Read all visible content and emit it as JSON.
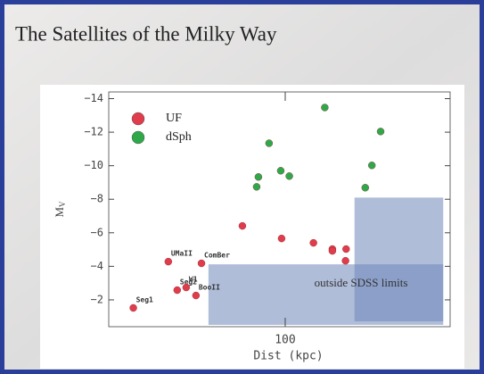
{
  "slide_title": "The Satellites of the Milky Way",
  "chart_data": {
    "type": "scatter",
    "xlabel": "Dist (kpc)",
    "ylabel": "M",
    "ylabel_sub": "V",
    "xscale": "log",
    "xlim": [
      18.5,
      484
    ],
    "xticks": [
      100
    ],
    "ylim": [
      -0.4,
      -14.4
    ],
    "yticks": [
      {
        "value": -14,
        "label": "−14"
      },
      {
        "value": -12,
        "label": "−12"
      },
      {
        "value": -10,
        "label": "−10"
      },
      {
        "value": -8,
        "label": "−8"
      },
      {
        "value": -6,
        "label": "−6"
      },
      {
        "value": -4,
        "label": "−4"
      },
      {
        "value": -2,
        "label": "−2"
      }
    ],
    "legend": "upper left",
    "series": [
      {
        "name": "UF",
        "color": "#e03c4c",
        "x": [
          23.4,
          32.7,
          44.9,
          35.6,
          38.8,
          42.6,
          66.4,
          96.6,
          131,
          157,
          157,
          179,
          178
        ],
        "values": [
          -1.52,
          -4.28,
          -4.18,
          -2.58,
          -2.74,
          -2.26,
          -6.41,
          -5.66,
          -5.4,
          -5.03,
          -4.92,
          -5.03,
          -4.33
        ],
        "labels": [
          "Seg1",
          "UMaII",
          "ComBer",
          "Seg2",
          "W1",
          "BooII",
          null,
          null,
          null,
          null,
          null,
          null,
          null
        ]
      },
      {
        "name": "dSph",
        "color": "#2fa84a",
        "x": [
          146,
          249,
          85.7,
          229,
          95.8,
          104,
          77.4,
          76.1,
          215
        ],
        "values": [
          -13.47,
          -12.04,
          -11.34,
          -10.02,
          -9.7,
          -9.38,
          -9.33,
          -8.74,
          -8.69
        ]
      }
    ],
    "shaded_regions": [
      {
        "xlim": [
          48,
          453
        ],
        "ylim": [
          -0.51,
          -4.12
        ]
      },
      {
        "xlim": [
          194,
          453
        ],
        "ylim": [
          -0.72,
          -8.1
        ]
      }
    ],
    "annotation": "outside SDSS limits"
  }
}
